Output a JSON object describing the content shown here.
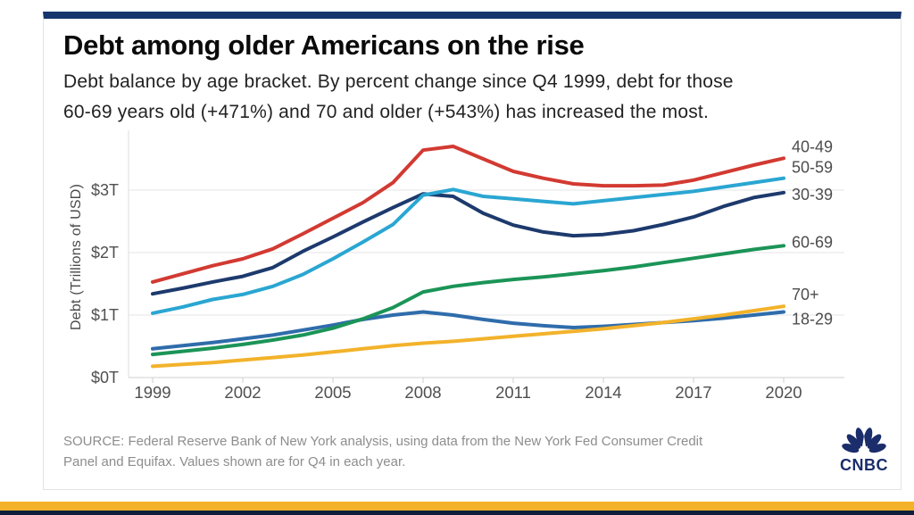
{
  "page": {
    "source_lines": [
      "SOURCE: Federal Reserve Bank of New York analysis, using data from the New York Fed Consumer Credit",
      "Panel and Equifax. Values shown are for Q4 in each year."
    ]
  },
  "branding": {
    "logo_text": "CNBC",
    "logo_color": "#1b2d6b"
  },
  "colors": {
    "top_bar_navy": "#17356d",
    "bottom_gold": "#f3b229",
    "bottom_navy": "#0e1e3c",
    "grid": "#e5e5e5",
    "axis": "#cfcfcf",
    "tick_text": "#4f4f4f",
    "end_label_text": "#4d4d4d"
  },
  "chart_data": {
    "type": "line",
    "title": "Debt among older Americans on the rise",
    "subtitle_lines": [
      "Debt balance by age bracket. By percent change since Q4 1999, debt for those",
      "60-69 years old (+471%) and 70 and older (+543%) has increased the most."
    ],
    "ylabel": "Debt (Trillions of USD)",
    "xlabel": "",
    "units": "Trillions of USD, Q4 of each year",
    "grid": true,
    "legend_position": "right-end-labels",
    "ylim": [
      0,
      4.0
    ],
    "y_ticks": [
      "$0T",
      "$1T",
      "$2T",
      "$3T"
    ],
    "x_ticks": [
      1999,
      2002,
      2005,
      2008,
      2011,
      2014,
      2017,
      2020
    ],
    "x": [
      1999,
      2000,
      2001,
      2002,
      2003,
      2004,
      2005,
      2006,
      2007,
      2008,
      2009,
      2010,
      2011,
      2012,
      2013,
      2014,
      2015,
      2016,
      2017,
      2018,
      2019,
      2020
    ],
    "series": [
      {
        "name": "18-29",
        "color": "#2f6cab",
        "label_dy": 8,
        "values": [
          0.46,
          0.51,
          0.56,
          0.62,
          0.68,
          0.76,
          0.84,
          0.93,
          1.0,
          1.05,
          1.0,
          0.93,
          0.87,
          0.83,
          0.8,
          0.82,
          0.85,
          0.88,
          0.91,
          0.95,
          1.0,
          1.05
        ]
      },
      {
        "name": "70+",
        "color": "#f2b22b",
        "label_dy": -13,
        "values": [
          0.18,
          0.21,
          0.24,
          0.28,
          0.32,
          0.36,
          0.41,
          0.46,
          0.51,
          0.55,
          0.58,
          0.62,
          0.66,
          0.7,
          0.74,
          0.78,
          0.83,
          0.88,
          0.94,
          1.0,
          1.07,
          1.14
        ]
      },
      {
        "name": "60-69",
        "color": "#1b9457",
        "label_dy": -4,
        "values": [
          0.37,
          0.42,
          0.47,
          0.53,
          0.6,
          0.68,
          0.79,
          0.94,
          1.12,
          1.37,
          1.46,
          1.52,
          1.57,
          1.61,
          1.66,
          1.71,
          1.77,
          1.84,
          1.91,
          1.98,
          2.05,
          2.11
        ]
      },
      {
        "name": "30-39",
        "color": "#1d3a6d",
        "label_dy": 2,
        "values": [
          1.34,
          1.43,
          1.53,
          1.62,
          1.76,
          2.02,
          2.25,
          2.49,
          2.72,
          2.94,
          2.9,
          2.63,
          2.44,
          2.33,
          2.27,
          2.29,
          2.35,
          2.45,
          2.57,
          2.74,
          2.88,
          2.96
        ]
      },
      {
        "name": "50-59",
        "color": "#2aa6d2",
        "label_dy": -12,
        "values": [
          1.03,
          1.13,
          1.25,
          1.33,
          1.46,
          1.65,
          1.9,
          2.17,
          2.45,
          2.92,
          3.01,
          2.9,
          2.86,
          2.82,
          2.78,
          2.83,
          2.88,
          2.93,
          2.98,
          3.05,
          3.12,
          3.19
        ]
      },
      {
        "name": "40-49",
        "color": "#d23a32",
        "label_dy": -13,
        "values": [
          1.53,
          1.66,
          1.79,
          1.9,
          2.06,
          2.3,
          2.55,
          2.8,
          3.12,
          3.64,
          3.7,
          3.5,
          3.3,
          3.19,
          3.1,
          3.07,
          3.07,
          3.08,
          3.16,
          3.28,
          3.4,
          3.51
        ]
      }
    ]
  }
}
